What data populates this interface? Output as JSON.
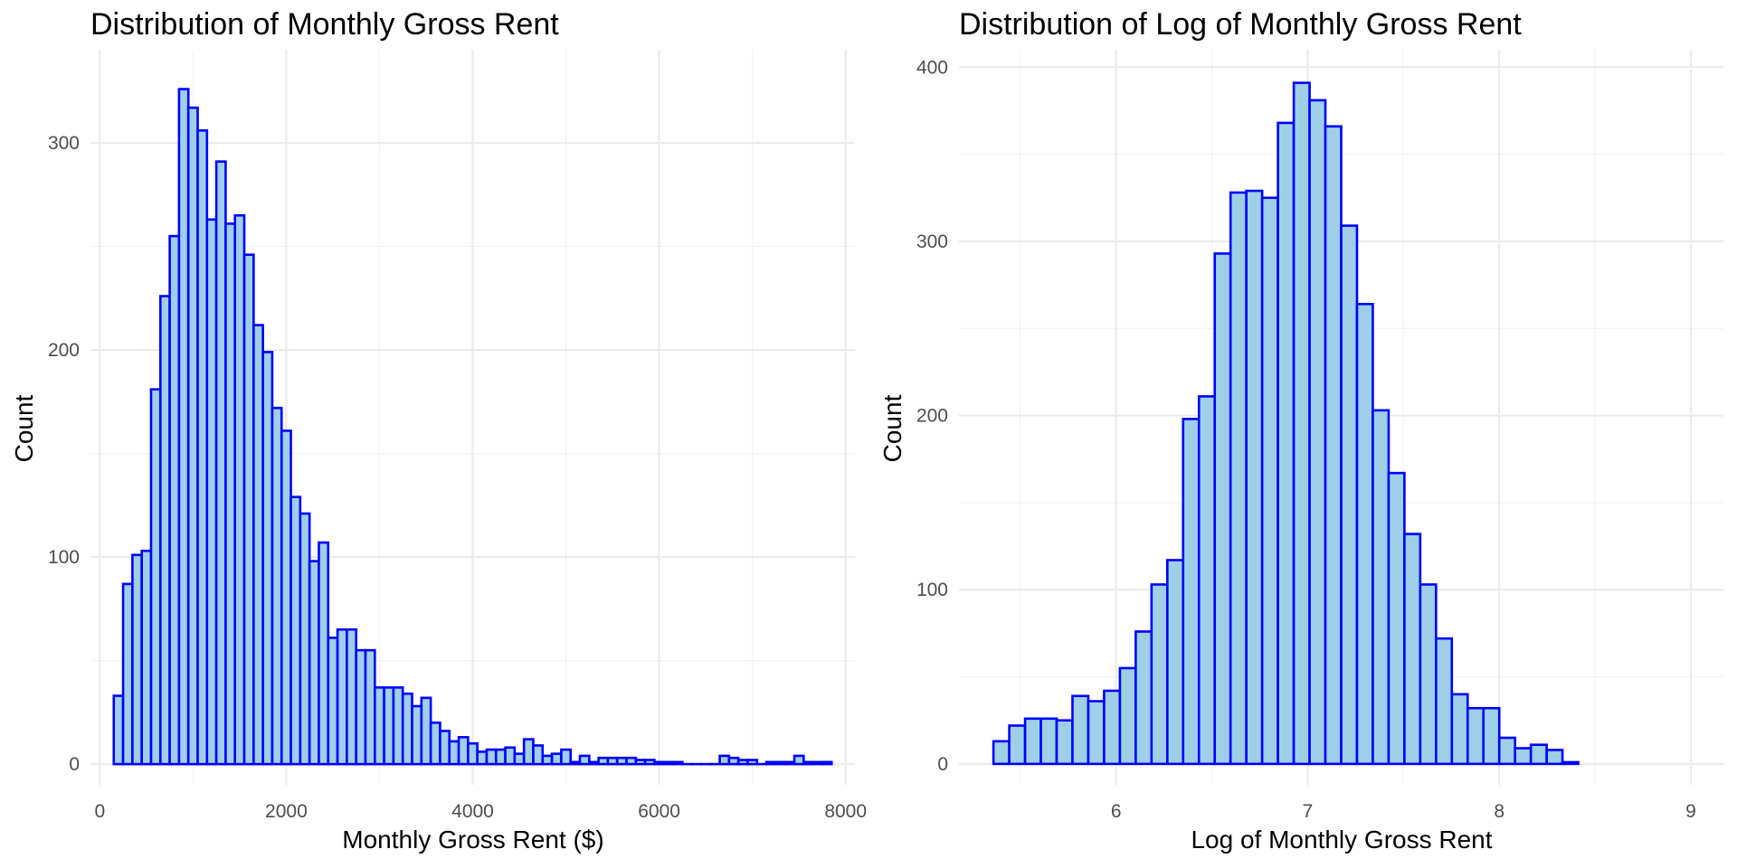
{
  "colors": {
    "bar_fill": "#9ecfe6",
    "bar_stroke": "#0000ff",
    "grid": "#ebebeb",
    "tick_text": "#4d4d4d"
  },
  "chart_data": [
    {
      "type": "bar",
      "title": "Distribution of Monthly Gross Rent",
      "xlabel": "Monthly Gross Rent ($)",
      "ylabel": "Count",
      "xlim": [
        -100,
        8100
      ],
      "ylim": [
        -10,
        345
      ],
      "xticks": [
        0,
        2000,
        4000,
        6000,
        8000
      ],
      "yticks": [
        0,
        100,
        200,
        300
      ],
      "grid": true,
      "bin_start": 150,
      "bin_width": 100,
      "values": [
        33,
        87,
        101,
        103,
        181,
        226,
        255,
        326,
        317,
        306,
        263,
        291,
        261,
        265,
        246,
        212,
        199,
        172,
        161,
        129,
        121,
        98,
        107,
        61,
        65,
        65,
        55,
        55,
        37,
        37,
        37,
        34,
        28,
        32,
        20,
        16,
        11,
        13,
        10,
        6,
        7,
        7,
        8,
        5,
        12,
        9,
        4,
        5,
        7,
        1,
        4,
        1,
        3,
        3,
        3,
        3,
        2,
        2,
        1,
        1,
        1,
        0,
        0,
        0,
        0,
        4,
        3,
        2,
        2,
        0,
        1,
        1,
        1,
        4,
        1,
        1,
        1
      ]
    },
    {
      "type": "bar",
      "title": "Distribution of Log of Monthly Gross Rent",
      "xlabel": "Log of Monthly Gross Rent",
      "ylabel": "Count",
      "xlim": [
        5.18,
        9.17
      ],
      "ylim": [
        -12,
        410
      ],
      "xticks": [
        6,
        7,
        8,
        9
      ],
      "yticks": [
        0,
        100,
        200,
        300,
        400
      ],
      "grid": true,
      "bin_start": 5.36,
      "bin_width": 0.0825,
      "values": [
        13,
        22,
        26,
        26,
        25,
        39,
        36,
        42,
        55,
        76,
        103,
        117,
        198,
        211,
        293,
        328,
        329,
        325,
        368,
        391,
        381,
        366,
        309,
        264,
        203,
        167,
        132,
        103,
        72,
        40,
        32,
        32,
        15,
        9,
        11,
        8,
        1
      ]
    }
  ]
}
